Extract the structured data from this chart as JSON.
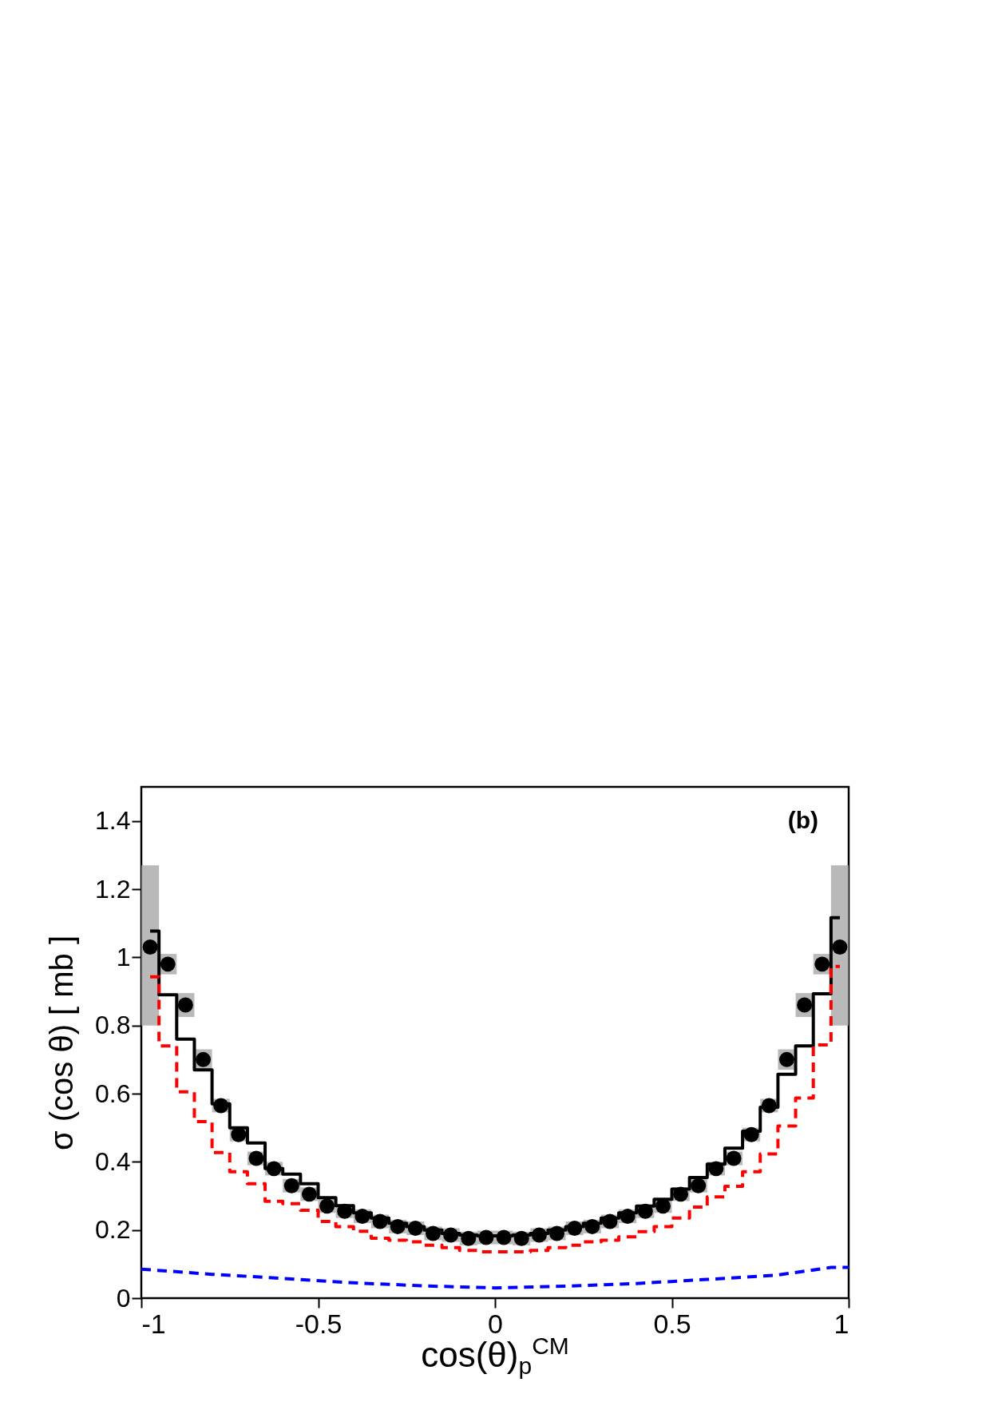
{
  "chart_data": {
    "type": "scatter",
    "xlabel": "cos(θ)$_{p}$$^{CM}$",
    "ylabel": "σ (cos θ) [ mb ]",
    "annotations": [
      "(b)"
    ],
    "x": [
      -0.975,
      -0.925,
      -0.875,
      -0.825,
      -0.775,
      -0.725,
      -0.675,
      -0.625,
      -0.575,
      -0.525,
      -0.475,
      -0.425,
      -0.375,
      -0.325,
      -0.275,
      -0.225,
      -0.175,
      -0.125,
      -0.075,
      -0.025,
      0.025,
      0.075,
      0.125,
      0.175,
      0.225,
      0.275,
      0.325,
      0.375,
      0.425,
      0.475,
      0.525,
      0.575,
      0.625,
      0.675,
      0.725,
      0.775,
      0.825,
      0.875,
      0.925,
      0.975
    ],
    "series": [
      {
        "color": "#000000",
        "marker": "circle",
        "values": [
          1.03,
          0.98,
          0.86,
          0.7,
          0.565,
          0.48,
          0.41,
          0.38,
          0.33,
          0.305,
          0.27,
          0.255,
          0.24,
          0.225,
          0.21,
          0.205,
          0.19,
          0.185,
          0.175,
          0.178,
          0.178,
          0.175,
          0.185,
          0.19,
          0.205,
          0.21,
          0.225,
          0.24,
          0.255,
          0.27,
          0.305,
          0.33,
          0.38,
          0.41,
          0.48,
          0.565,
          0.7,
          0.86,
          0.98,
          1.03
        ],
        "errors": [
          [
            0.8,
            1.27
          ],
          0.03,
          0.035,
          0.03,
          0.02,
          0.02,
          0.02,
          0.02,
          0.02,
          0.02,
          0.02,
          0.02,
          0.02,
          0.02,
          0.02,
          0.02,
          0.02,
          0.02,
          0.02,
          0.02,
          0.02,
          0.02,
          0.02,
          0.02,
          0.02,
          0.02,
          0.02,
          0.02,
          0.02,
          0.02,
          0.02,
          0.02,
          0.02,
          0.02,
          0.02,
          0.02,
          0.03,
          0.035,
          0.03,
          [
            0.8,
            1.27
          ]
        ]
      },
      {
        "type": "step",
        "color": "#000000",
        "line_style": "solid",
        "values": [
          1.077,
          0.89,
          0.76,
          0.67,
          0.57,
          0.5,
          0.455,
          0.38,
          0.364,
          0.336,
          0.295,
          0.271,
          0.25,
          0.235,
          0.22,
          0.21,
          0.2,
          0.19,
          0.185,
          0.183,
          0.183,
          0.185,
          0.19,
          0.2,
          0.21,
          0.22,
          0.235,
          0.25,
          0.27,
          0.29,
          0.32,
          0.354,
          0.393,
          0.44,
          0.49,
          0.56,
          0.657,
          0.74,
          0.893,
          1.116
        ]
      },
      {
        "type": "step",
        "color": "#ff0000",
        "line_style": "dashed",
        "values": [
          0.943,
          0.74,
          0.605,
          0.518,
          0.427,
          0.371,
          0.336,
          0.284,
          0.277,
          0.258,
          0.225,
          0.21,
          0.196,
          0.176,
          0.17,
          0.165,
          0.155,
          0.148,
          0.14,
          0.136,
          0.136,
          0.136,
          0.14,
          0.148,
          0.155,
          0.165,
          0.17,
          0.18,
          0.195,
          0.21,
          0.235,
          0.267,
          0.297,
          0.328,
          0.371,
          0.423,
          0.505,
          0.587,
          0.743,
          0.973
        ]
      },
      {
        "type": "line",
        "color": "#0000ff",
        "line_style": "dashed",
        "x": [
          -1,
          -0.8,
          -0.6,
          -0.4,
          -0.2,
          0,
          0.2,
          0.4,
          0.6,
          0.8,
          0.95,
          1
        ],
        "values": [
          0.085,
          0.07,
          0.058,
          0.045,
          0.036,
          0.03,
          0.035,
          0.043,
          0.055,
          0.068,
          0.09,
          0.09
        ]
      }
    ],
    "xlim": [
      -1,
      1
    ],
    "xticks": [
      -1,
      -0.5,
      0,
      0.5,
      1
    ],
    "ylim": [
      0,
      1.5
    ],
    "yticks": [
      0,
      0.2,
      0.4,
      0.6,
      0.8,
      1,
      1.2,
      1.4
    ],
    "grid": false
  }
}
